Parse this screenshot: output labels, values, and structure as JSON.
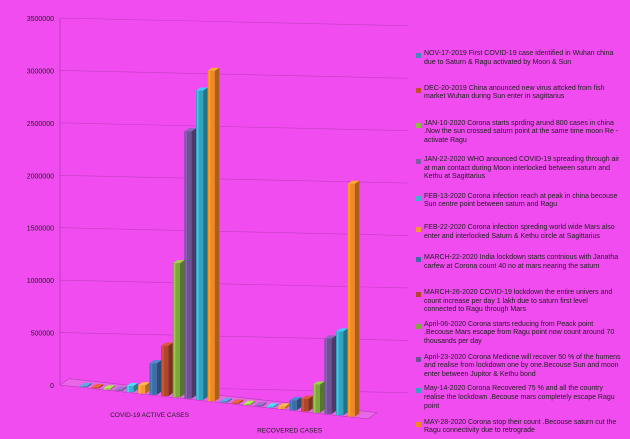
{
  "colors": {
    "background": "#f04cf0",
    "series": [
      "#4b86b8",
      "#c0502e",
      "#8bbd45",
      "#7d5ea3",
      "#3fb0cf",
      "#f79a35",
      "#3a6fa6",
      "#b0472a",
      "#7da83d",
      "#6d5294",
      "#33a3c0",
      "#f08a20"
    ]
  },
  "chart_data": {
    "type": "bar",
    "title": "",
    "xlabel": "",
    "ylabel": "",
    "ylim": [
      0,
      3500000
    ],
    "yticks": [
      "0",
      "500000",
      "1000000",
      "1500000",
      "2000000",
      "2500000",
      "3000000",
      "3500000"
    ],
    "grid": true,
    "legend_position": "right",
    "categories": [
      "COVID-19 ACTIVE CASES",
      "RECOVERED CASES"
    ],
    "series": [
      {
        "name": "NOV-17-2019 First COVID-19 case identified in Wuhan china due to Saturn & Ragu activated by Moon & Sun",
        "values": [
          1,
          0
        ]
      },
      {
        "name": "DEC-20-2019 China anounced new virus attcked from fish market Wuhan during Sun enter in sagittarius",
        "values": [
          60,
          0
        ]
      },
      {
        "name": "JAN-10-2020 Corona starts sprding arund  800 cases  in china .Now the sun crossed saturn point at the same time moon Re -activate Ragu",
        "values": [
          800,
          30
        ]
      },
      {
        "name": "JAN-22-2020 WHO anounced COVID-19 spreading through air at man contact during Moon interlocked between saturn and Kethu at Sagittarius",
        "values": [
          580,
          28
        ]
      },
      {
        "name": "FEB-13-2020 Corona infection reach at peak in china becouse Sun centre point between saturn and Ragu",
        "values": [
          60000,
          6000
        ]
      },
      {
        "name": "FEB-22-2020 Corona infection spreding world wide Mars also enter and interlocked Saturn & Kethu circle at Sagittarius",
        "values": [
          78000,
          22000
        ]
      },
      {
        "name": "MARCH-22-2020 India lockdown starts  contnious with Janatha carfew at Corona count 40 no at mars nearing the saturn",
        "values": [
          300000,
          95000
        ]
      },
      {
        "name": "MARCH-26-2020 COVID-19 lockdown the entire univers and count increase per day  1 lakh due to saturn first level connected to Ragu through Mars",
        "values": [
          480000,
          120000
        ]
      },
      {
        "name": "April-06-2020 Corona starts  reducing from Peack point .Becouse Mars escape from Ragu point now count around 70 thousands per day",
        "values": [
          1280000,
          270000
        ]
      },
      {
        "name": "April-23-2020 Corona Medicne will recover 50 % of the humens and realise from lockdown  one by one.Becouse Sun and moon enter between Jupitor & Kethu bond",
        "values": [
          2550000,
          720000
        ]
      },
      {
        "name": "May-14-2020 Corona Recovered 75 % and all the country realise the lockdown .Becouse mars completely escape Ragu point",
        "values": [
          2950000,
          800000
        ]
      },
      {
        "name": "MAY-28-2020 Corona stop their count .Becouse saturn cut the Ragu connectivity due to retrograde",
        "values": [
          3150000,
          2220000
        ]
      }
    ]
  }
}
